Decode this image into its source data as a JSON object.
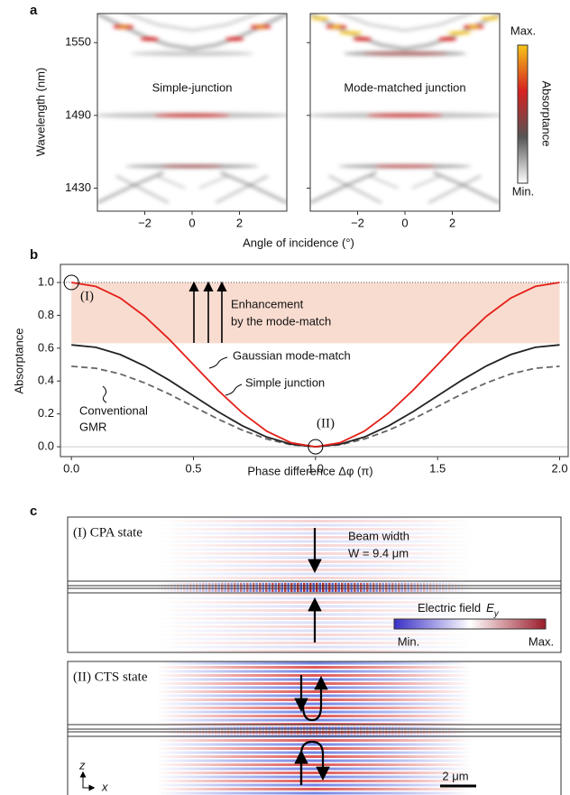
{
  "chart_data": [
    {
      "type": "heatmap",
      "label": "a",
      "panels": [
        "Simple-junction",
        "Mode-matched junction"
      ],
      "xlabel": "Angle of incidence (°)",
      "ylabel": "Wavelength (nm)",
      "xlim": [
        -4,
        4
      ],
      "ylim": [
        1411,
        1574
      ],
      "xticks": [
        {
          "value": -2,
          "label": "−2"
        },
        0,
        2
      ],
      "yticks": [
        1430,
        1490,
        1550
      ],
      "colorbar": {
        "title": "Absorptance",
        "max": "Max.",
        "min": "Min."
      },
      "colormap": [
        "#ffffff",
        "#555555",
        "#d62020",
        "#f5c518"
      ]
    },
    {
      "type": "line",
      "label": "b",
      "xlabel": "Phase difference Δφ (π)",
      "ylabel": "Absorptance",
      "x": [
        0,
        0.1,
        0.2,
        0.3,
        0.4,
        0.5,
        0.6,
        0.7,
        0.8,
        0.9,
        1.0,
        1.1,
        1.2,
        1.3,
        1.4,
        1.5,
        1.6,
        1.7,
        1.8,
        1.9,
        2.0
      ],
      "series": [
        {
          "name": "Gaussian mode-match",
          "color": "#e32119",
          "style": "solid",
          "values": [
            1,
            0.976,
            0.905,
            0.794,
            0.655,
            0.5,
            0.345,
            0.206,
            0.095,
            0.024,
            0,
            0.024,
            0.095,
            0.206,
            0.345,
            0.5,
            0.655,
            0.794,
            0.905,
            0.976,
            1
          ]
        },
        {
          "name": "Simple junction",
          "color": "#222222",
          "style": "solid",
          "values": [
            0.62,
            0.605,
            0.561,
            0.492,
            0.406,
            0.31,
            0.214,
            0.128,
            0.059,
            0.015,
            0,
            0.015,
            0.059,
            0.128,
            0.214,
            0.31,
            0.406,
            0.492,
            0.561,
            0.605,
            0.62
          ]
        },
        {
          "name": [
            "Conventional",
            "GMR"
          ],
          "color": "#666666",
          "style": "dashed",
          "values": [
            0.49,
            0.478,
            0.443,
            0.389,
            0.321,
            0.245,
            0.169,
            0.101,
            0.047,
            0.012,
            0,
            0.012,
            0.047,
            0.101,
            0.169,
            0.245,
            0.321,
            0.389,
            0.443,
            0.478,
            0.49
          ]
        }
      ],
      "xlim": [
        -0.045,
        2.035
      ],
      "ylim": [
        -0.06,
        1.11
      ],
      "xticks": [
        {
          "value": 0,
          "label": "0.0"
        },
        0.5,
        {
          "value": 1,
          "label": "1.0"
        },
        1.5,
        {
          "value": 2,
          "label": "2.0"
        }
      ],
      "yticks": [
        {
          "value": 0,
          "label": "0.0"
        },
        0.2,
        0.4,
        0.6,
        0.8,
        {
          "value": 1,
          "label": "1.0"
        }
      ],
      "band": {
        "from": 0.63,
        "to": 1.0,
        "color": "#f9dcd0"
      },
      "annotations": {
        "state_1": "(I)",
        "state_2": "(II)",
        "enhancement": [
          "Enhancement",
          "by the mode-match"
        ]
      }
    },
    {
      "type": "field",
      "label": "c",
      "panels": [
        "(I) CPA state",
        "(II) CTS state"
      ],
      "beam": [
        "Beam width",
        "W = 9.4 μm"
      ],
      "colorbar": {
        "title": "Electric field",
        "symbol": "E",
        "subscript": "y",
        "min": "Min.",
        "max": "Max."
      },
      "scalebar": "2 μm",
      "axes": [
        "z",
        "x"
      ]
    }
  ]
}
